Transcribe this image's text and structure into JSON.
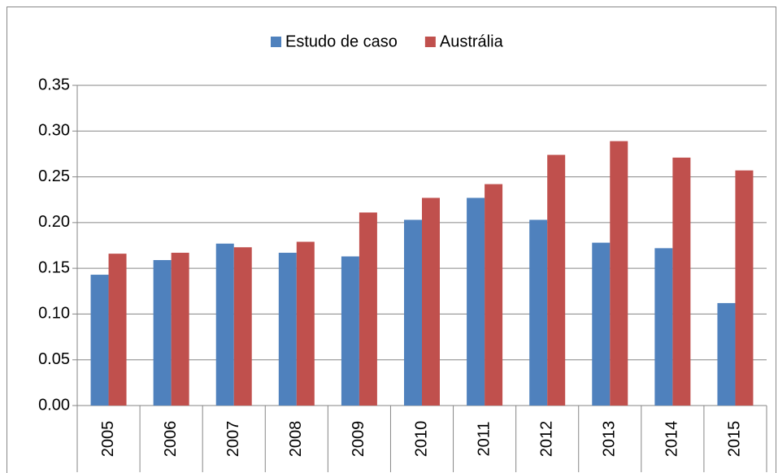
{
  "chart_data": {
    "type": "bar",
    "categories": [
      "2005",
      "2006",
      "2007",
      "2008",
      "2009",
      "2010",
      "2011",
      "2012",
      "2013",
      "2014",
      "2015"
    ],
    "series": [
      {
        "name": "Estudo de caso",
        "color": "#4f81bd",
        "values": [
          0.143,
          0.159,
          0.177,
          0.167,
          0.163,
          0.203,
          0.227,
          0.203,
          0.178,
          0.172,
          0.112
        ]
      },
      {
        "name": "Austrália",
        "color": "#c0504d",
        "values": [
          0.166,
          0.167,
          0.173,
          0.179,
          0.211,
          0.227,
          0.242,
          0.274,
          0.289,
          0.271,
          0.257
        ]
      }
    ],
    "ylim": [
      0,
      0.35
    ],
    "yticks": [
      {
        "value": 0,
        "label": "0.00"
      },
      {
        "value": 0.05,
        "label": "0.05"
      },
      {
        "value": 0.1,
        "label": "0.10"
      },
      {
        "value": 0.15,
        "label": "0.15"
      },
      {
        "value": 0.2,
        "label": "0.20"
      },
      {
        "value": 0.25,
        "label": "0.25"
      },
      {
        "value": 0.3,
        "label": "0.30"
      },
      {
        "value": 0.35,
        "label": "0.35"
      }
    ],
    "grid": true,
    "legend": "top"
  }
}
